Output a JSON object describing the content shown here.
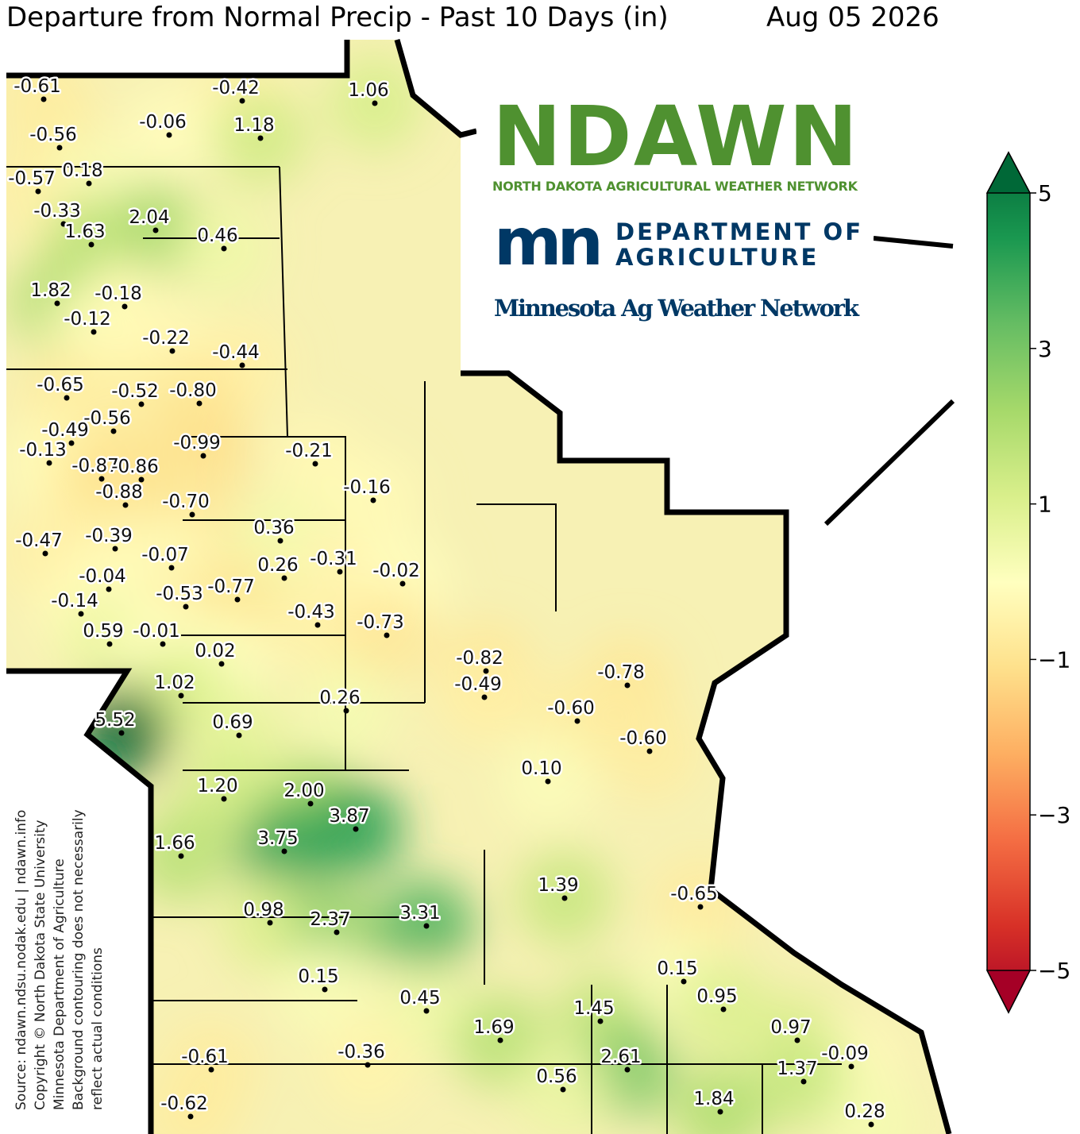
{
  "title": "Departure from Normal Precip - Past 10 Days (in)",
  "date": "Aug 05 2026",
  "stations": {
    "values": [
      -0.61,
      -0.42,
      1.06,
      -0.06,
      1.18,
      -0.56,
      -0.57,
      0.18,
      -0.33,
      2.04,
      1.63,
      0.46,
      1.82,
      -0.18,
      -0.12,
      -0.22,
      -0.44,
      -0.65,
      -0.52,
      -0.8,
      -0.49,
      -0.56,
      -0.99,
      -0.21,
      -0.13,
      -0.87,
      -0.86,
      -0.88,
      -0.7,
      -0.16,
      0.36,
      -0.39,
      -0.47,
      -0.07,
      0.26,
      -0.31,
      -0.02,
      -0.04,
      -0.53,
      -0.77,
      -0.14,
      -0.43,
      -0.73,
      0.59,
      -0.01,
      0.02,
      -0.82,
      -0.49,
      -0.78,
      1.02,
      0.26,
      -0.6,
      5.52,
      0.69,
      -0.6,
      0.1,
      1.2,
      2.0,
      3.87,
      1.66,
      3.75,
      1.39,
      -0.65,
      0.98,
      2.37,
      3.31,
      0.15,
      0.15,
      0.95,
      0.45,
      1.45,
      1.69,
      0.97,
      -0.61,
      -0.36,
      2.61,
      -0.09,
      0.56,
      1.37,
      1.84,
      -0.62,
      0.28
    ],
    "value_labels": [
      "-0.61",
      "-0.42",
      "1.06",
      "-0.06",
      "1.18",
      "-0.56",
      "-0.57",
      "0.18",
      "-0.33",
      "2.04",
      "1.63",
      "0.46",
      "1.82",
      "-0.18",
      "-0.12",
      "-0.22",
      "-0.44",
      "-0.65",
      "-0.52",
      "-0.80",
      "-0.49",
      "-0.56",
      "-0.99",
      "-0.21",
      "-0.13",
      "-0.87",
      "-0.86",
      "-0.88",
      "-0.70",
      "-0.16",
      "0.36",
      "-0.39",
      "-0.47",
      "-0.07",
      "0.26",
      "-0.31",
      "-0.02",
      "-0.04",
      "-0.53",
      "-0.77",
      "-0.14",
      "-0.43",
      "-0.73",
      "0.59",
      "-0.01",
      "0.02",
      "-0.82",
      "-0.49",
      "-0.78",
      "1.02",
      "0.26",
      "-0.60",
      "5.52",
      "0.69",
      "-0.60",
      "0.10",
      "1.20",
      "2.00",
      "3.87",
      "1.66",
      "3.75",
      "1.39",
      "-0.65",
      "0.98",
      "2.37",
      "3.31",
      "0.15",
      "0.15",
      "0.95",
      "0.45",
      "1.45",
      "1.69",
      "0.97",
      "-0.61",
      "-0.36",
      "2.61",
      "-0.09",
      "0.56",
      "1.37",
      "1.84",
      "-0.62",
      "0.28"
    ]
  },
  "colorbar": {
    "lim": [
      -5,
      5
    ],
    "ticks": [
      5,
      3,
      1,
      {
        "value": -1,
        "label": "−1"
      },
      {
        "value": -3,
        "label": "−3"
      },
      {
        "value": -5,
        "label": "−5"
      }
    ]
  },
  "logos": {
    "ndawn": "NDAWN",
    "ndawn_sub": "NORTH DAKOTA AGRICULTURAL WEATHER NETWORK",
    "mn": "mn",
    "dept1": "DEPARTMENT OF",
    "dept2": "AGRICULTURE",
    "mawn": "Minnesota Ag Weather Network"
  },
  "source": [
    "Source: ndawn.ndsu.nodak.edu | ndawn.info",
    "Copyright © North Dakota State University",
    "Minnesota Department of Agriculture",
    "Background contouring does not necessarily",
    "reflect actual conditions"
  ]
}
